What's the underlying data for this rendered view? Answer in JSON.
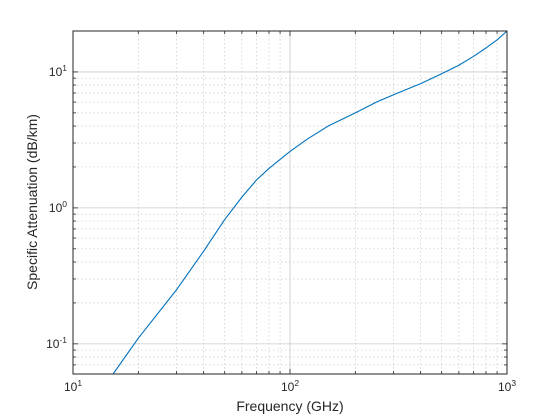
{
  "chart_data": {
    "type": "line",
    "xlabel": "Frequency (GHz)",
    "ylabel": "Specific Attenuation (dB/km)",
    "x_scale": "log",
    "y_scale": "log",
    "xlim": [
      10,
      1000
    ],
    "ylim": [
      0.06,
      20
    ],
    "grid": "major and minor",
    "x_ticks": [
      {
        "value": 10,
        "base": "10",
        "exp": "1"
      },
      {
        "value": 100,
        "base": "10",
        "exp": "2"
      },
      {
        "value": 1000,
        "base": "10",
        "exp": "3"
      }
    ],
    "y_ticks": [
      {
        "value": 0.1,
        "base": "10",
        "exp": "-1"
      },
      {
        "value": 1,
        "base": "10",
        "exp": "0"
      },
      {
        "value": 10,
        "base": "10",
        "exp": "1"
      }
    ],
    "series": [
      {
        "color": "#0072BD",
        "points": [
          [
            15.3,
            0.06
          ],
          [
            20,
            0.11
          ],
          [
            30,
            0.25
          ],
          [
            40,
            0.48
          ],
          [
            50,
            0.82
          ],
          [
            60,
            1.2
          ],
          [
            70,
            1.6
          ],
          [
            80,
            1.95
          ],
          [
            100,
            2.6
          ],
          [
            120,
            3.2
          ],
          [
            150,
            4.0
          ],
          [
            200,
            5.0
          ],
          [
            250,
            6.0
          ],
          [
            300,
            6.8
          ],
          [
            400,
            8.2
          ],
          [
            500,
            9.7
          ],
          [
            600,
            11.2
          ],
          [
            700,
            13.0
          ],
          [
            800,
            15.0
          ],
          [
            900,
            17.2
          ],
          [
            1000,
            20.0
          ]
        ]
      }
    ],
    "colors": {
      "line": "#0072BD",
      "axes": "#262626",
      "grid": "#c8c8c8"
    }
  }
}
